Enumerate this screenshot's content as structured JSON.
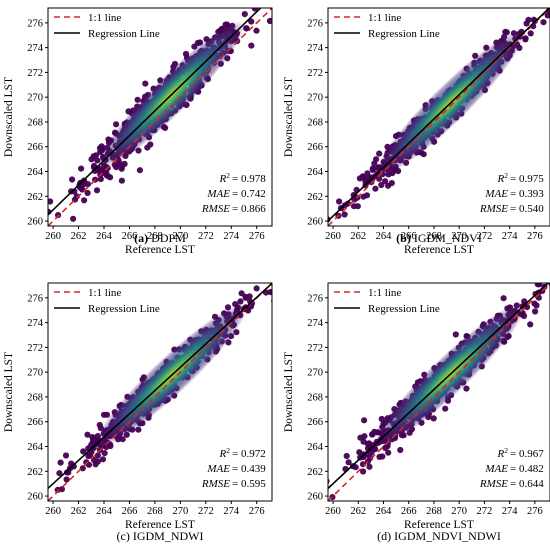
{
  "chart_data": [
    {
      "type": "scatter",
      "caption_prefix": "(a)",
      "caption_name": "DDPM",
      "xlabel": "Reference LST",
      "ylabel": "Downscaled LST",
      "xlim": [
        259.6,
        277.2
      ],
      "ylim": [
        259.6,
        277.2
      ],
      "xticks": [
        260,
        262,
        264,
        266,
        268,
        270,
        272,
        274,
        276
      ],
      "yticks": [
        260,
        262,
        264,
        266,
        268,
        270,
        272,
        274,
        276
      ],
      "legend": [
        {
          "label": "1:1 line",
          "color": "#d62728",
          "style": "dashed"
        },
        {
          "label": "Regression Line",
          "color": "#000000",
          "style": "solid"
        }
      ],
      "legend_position": "top-left",
      "density_colormap": "viridis",
      "regression": {
        "slope": 1.0,
        "intercept": 0.9
      },
      "spread": 0.9,
      "stats": {
        "r2": {
          "label": "R",
          "value": "= 0.978"
        },
        "mae": {
          "label": "MAE",
          "value": "= 0.742"
        },
        "rmse": {
          "label": "RMSE",
          "value": "= 0.866"
        }
      }
    },
    {
      "type": "scatter",
      "caption_prefix": "(b)",
      "caption_name": "IGDM_NDVI",
      "xlabel": "Reference LST",
      "ylabel": "Downscaled LST",
      "xlim": [
        259.6,
        277.2
      ],
      "ylim": [
        259.6,
        277.2
      ],
      "xticks": [
        260,
        262,
        264,
        266,
        268,
        270,
        272,
        274,
        276
      ],
      "yticks": [
        260,
        262,
        264,
        266,
        268,
        270,
        272,
        274,
        276
      ],
      "legend": [
        {
          "label": "1:1 line",
          "color": "#d62728",
          "style": "dashed"
        },
        {
          "label": "Regression Line",
          "color": "#000000",
          "style": "solid"
        }
      ],
      "legend_position": "top-left",
      "density_colormap": "viridis",
      "regression": {
        "slope": 0.98,
        "intercept": 5.6
      },
      "spread": 0.65,
      "stats": {
        "r2": {
          "label": "R",
          "value": "= 0.975"
        },
        "mae": {
          "label": "MAE",
          "value": "= 0.393"
        },
        "rmse": {
          "label": "RMSE",
          "value": "= 0.540"
        }
      }
    },
    {
      "type": "scatter",
      "caption_prefix": "(c)",
      "caption_name": "IGDM_NDWI",
      "xlabel": "Reference LST",
      "ylabel": "Downscaled LST",
      "xlim": [
        259.6,
        277.2
      ],
      "ylim": [
        259.6,
        277.2
      ],
      "xticks": [
        260,
        262,
        264,
        266,
        268,
        270,
        272,
        274,
        276
      ],
      "yticks": [
        260,
        262,
        264,
        266,
        268,
        270,
        272,
        274,
        276
      ],
      "legend": [
        {
          "label": "1:1 line",
          "color": "#d62728",
          "style": "dashed"
        },
        {
          "label": "Regression Line",
          "color": "#000000",
          "style": "solid"
        }
      ],
      "legend_position": "top-left",
      "density_colormap": "viridis",
      "regression": {
        "slope": 0.94,
        "intercept": 16.6
      },
      "spread": 0.72,
      "stats": {
        "r2": {
          "label": "R",
          "value": "= 0.972"
        },
        "mae": {
          "label": "MAE",
          "value": "= 0.439"
        },
        "rmse": {
          "label": "RMSE",
          "value": "= 0.595"
        }
      }
    },
    {
      "type": "scatter",
      "caption_prefix": "(d)",
      "caption_name": "IGDM_NDVI_NDWI",
      "xlabel": "Reference LST",
      "ylabel": "Downscaled LST",
      "xlim": [
        259.6,
        277.2
      ],
      "ylim": [
        259.6,
        277.2
      ],
      "xticks": [
        260,
        262,
        264,
        266,
        268,
        270,
        272,
        274,
        276
      ],
      "yticks": [
        260,
        262,
        264,
        266,
        268,
        270,
        272,
        274,
        276
      ],
      "legend": [
        {
          "label": "1:1 line",
          "color": "#d62728",
          "style": "dashed"
        },
        {
          "label": "Regression Line",
          "color": "#000000",
          "style": "solid"
        }
      ],
      "legend_position": "top-left",
      "density_colormap": "viridis",
      "regression": {
        "slope": 0.95,
        "intercept": 14.0
      },
      "spread": 0.78,
      "stats": {
        "r2": {
          "label": "R",
          "value": "= 0.967"
        },
        "mae": {
          "label": "MAE",
          "value": "= 0.482"
        },
        "rmse": {
          "label": "RMSE",
          "value": "= 0.644"
        }
      }
    }
  ]
}
